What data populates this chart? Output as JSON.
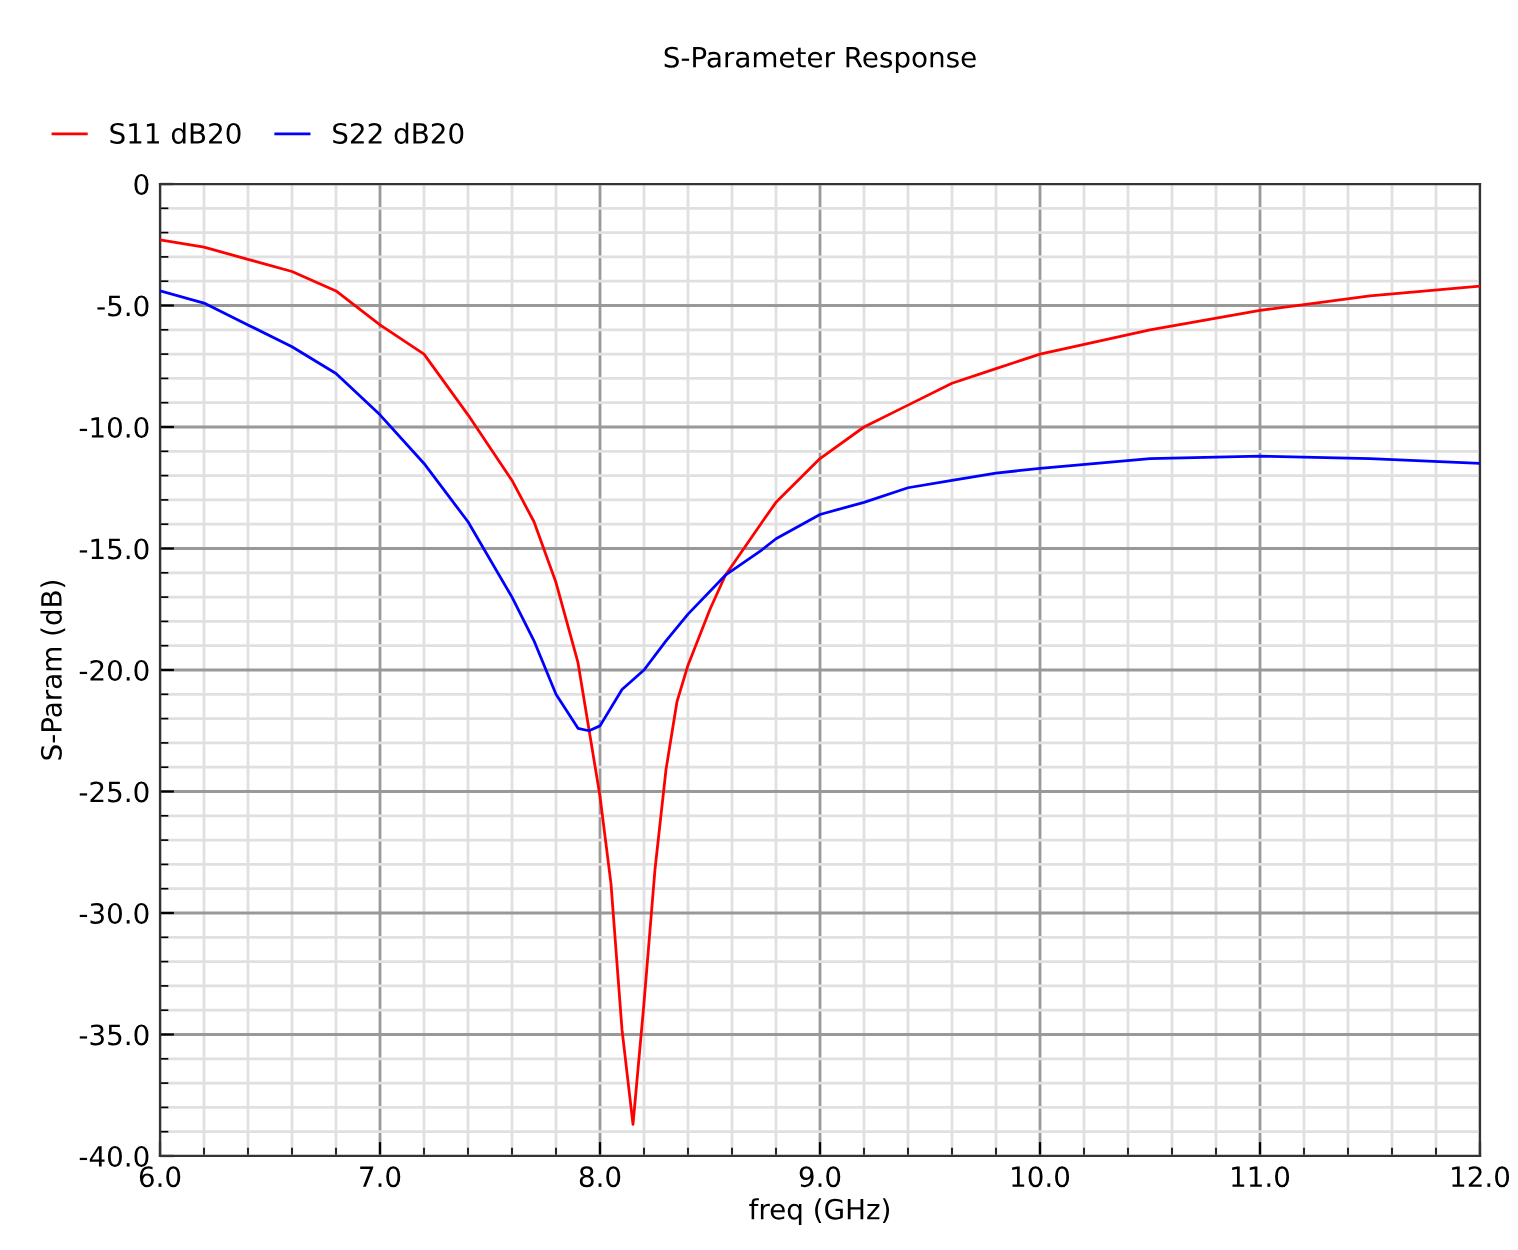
{
  "chart_data": {
    "type": "line",
    "title": "S-Parameter Response",
    "xlabel": "freq (GHz)",
    "ylabel": "S-Param (dB)",
    "xlim": [
      6.0,
      12.0
    ],
    "ylim": [
      -40.0,
      0
    ],
    "xticks": [
      {
        "value": 6,
        "label": "6.0"
      },
      {
        "value": 7,
        "label": "7.0"
      },
      {
        "value": 8,
        "label": "8.0"
      },
      {
        "value": 9,
        "label": "9.0"
      },
      {
        "value": 10,
        "label": "10.0"
      },
      {
        "value": 11,
        "label": "11.0"
      },
      {
        "value": 12,
        "label": "12.0"
      }
    ],
    "yticks": [
      0,
      {
        "value": -5,
        "label": "-5.0"
      },
      {
        "value": -10,
        "label": "-10.0"
      },
      {
        "value": -15,
        "label": "-15.0"
      },
      {
        "value": -20,
        "label": "-20.0"
      },
      {
        "value": -25,
        "label": "-25.0"
      },
      {
        "value": -30,
        "label": "-30.0"
      },
      {
        "value": -35,
        "label": "-35.0"
      },
      {
        "value": -40,
        "label": "-40.0"
      }
    ],
    "grid": true,
    "legend": "top left",
    "marker": "none",
    "line_style": "solid",
    "series": [
      {
        "name": "S11 dB20",
        "color": "#ff0000",
        "x": [
          6.0,
          6.2,
          6.4,
          6.6,
          6.8,
          7.0,
          7.2,
          7.4,
          7.6,
          7.7,
          7.8,
          7.9,
          8.0,
          8.05,
          8.1,
          8.15,
          8.2,
          8.25,
          8.3,
          8.35,
          8.4,
          8.5,
          8.57,
          8.73,
          8.8,
          9.0,
          9.2,
          9.4,
          9.6,
          9.8,
          10.0,
          10.5,
          11.0,
          11.5,
          12.0
        ],
        "values": [
          -2.3,
          -2.6,
          -3.1,
          -3.6,
          -4.4,
          -5.8,
          -7.0,
          -9.5,
          -12.2,
          -13.9,
          -16.4,
          -19.7,
          -25.2,
          -28.8,
          -34.8,
          -38.7,
          -33.7,
          -28.2,
          -24.1,
          -21.3,
          -19.8,
          -17.5,
          -16.1,
          -14.0,
          -13.1,
          -11.3,
          -10.0,
          -9.1,
          -8.2,
          -7.6,
          -7.0,
          -6.0,
          -5.2,
          -4.6,
          -4.2
        ]
      },
      {
        "name": "S22 dB20",
        "color": "#0000ff",
        "x": [
          6.0,
          6.2,
          6.4,
          6.6,
          6.8,
          7.0,
          7.2,
          7.4,
          7.6,
          7.7,
          7.8,
          7.9,
          7.95,
          8.0,
          8.1,
          8.2,
          8.3,
          8.4,
          8.57,
          8.73,
          8.8,
          9.0,
          9.2,
          9.4,
          9.6,
          9.8,
          10.0,
          10.5,
          11.0,
          11.5,
          12.0
        ],
        "values": [
          -4.4,
          -4.9,
          -5.8,
          -6.7,
          -7.8,
          -9.5,
          -11.5,
          -13.9,
          -17.0,
          -18.8,
          -21.0,
          -22.4,
          -22.5,
          -22.3,
          -20.8,
          -20.0,
          -18.8,
          -17.7,
          -16.1,
          -15.1,
          -14.6,
          -13.6,
          -13.1,
          -12.5,
          -12.2,
          -11.9,
          -11.7,
          -11.3,
          -11.2,
          -11.3,
          -11.5
        ]
      }
    ]
  }
}
